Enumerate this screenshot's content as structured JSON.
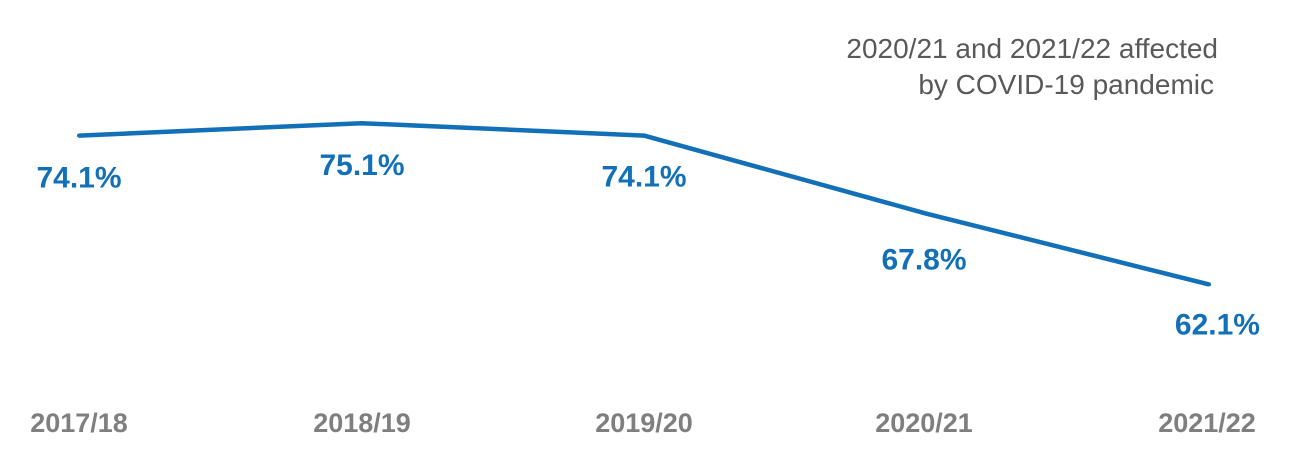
{
  "chart_data": {
    "type": "line",
    "title": "",
    "xlabel": "",
    "ylabel": "",
    "categories": [
      "2017/18",
      "2018/19",
      "2019/20",
      "2020/21",
      "2021/22"
    ],
    "series": [
      {
        "values": [
          74.1,
          75.1,
          74.1,
          67.8,
          62.1
        ],
        "labels": [
          "74.1%",
          "75.1%",
          "74.1%",
          "67.8%",
          "62.1%"
        ],
        "color": "#1170b8"
      }
    ],
    "ylim": [
      50,
      80
    ],
    "grid": false,
    "legend": "none",
    "annotation": {
      "lines": [
        "2020/21 and 2021/22 affected",
        "by COVID-19 pandemic"
      ]
    },
    "colors": {
      "line": "#1170b8",
      "annotation_text": "#595959",
      "tick_text": "#7f7f7f"
    }
  }
}
